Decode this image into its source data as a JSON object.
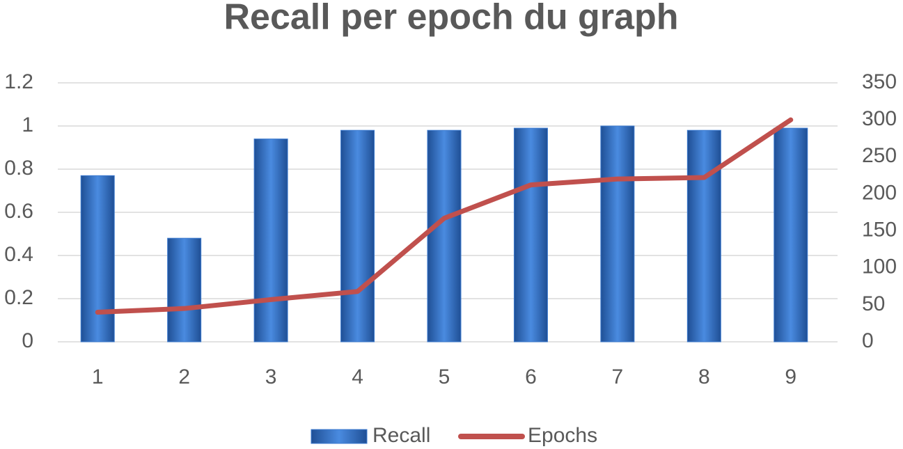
{
  "chart_data": {
    "type": "bar-line",
    "title": "Recall per epoch du graph",
    "categories": [
      "1",
      "2",
      "3",
      "4",
      "5",
      "6",
      "7",
      "8",
      "9"
    ],
    "series": [
      {
        "name": "Recall",
        "type": "bar",
        "color": "#3d7bd0",
        "values": [
          0.77,
          0.48,
          0.94,
          0.98,
          0.98,
          0.99,
          1.0,
          0.98,
          0.99
        ]
      },
      {
        "name": "Epochs",
        "type": "line",
        "axis": "y2",
        "color": "#c0504d",
        "values": [
          40,
          45,
          57,
          68,
          167,
          212,
          220,
          222,
          300
        ]
      }
    ],
    "ylim": [
      0,
      1.2
    ],
    "yticks": [
      0,
      0.2,
      0.4,
      0.6,
      0.8,
      1,
      1.2
    ],
    "y2lim": [
      0,
      350
    ],
    "y2ticks": [
      0,
      50,
      100,
      150,
      200,
      250,
      300,
      350
    ],
    "grid": true,
    "legend": "bottom"
  }
}
